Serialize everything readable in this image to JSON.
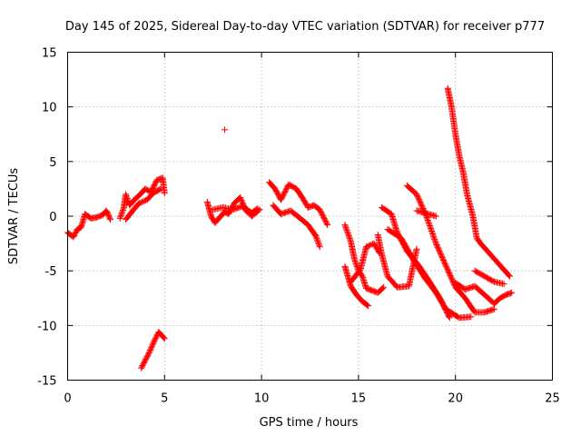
{
  "chart_data": {
    "type": "scatter",
    "title": "Day 145 of 2025, Sidereal Day-to-day VTEC variation (SDTVAR) for receiver p777",
    "xlabel": "GPS time / hours",
    "ylabel": "SDTVAR / TECUs",
    "xlim": [
      0,
      25
    ],
    "ylim": [
      -15,
      15
    ],
    "grid": true,
    "x_ticks": [
      0,
      5,
      10,
      15,
      20,
      25
    ],
    "y_ticks": [
      -15,
      -10,
      -5,
      0,
      5,
      10,
      15
    ],
    "marker_color": "#ff0000",
    "series": [
      {
        "name": "seg_a",
        "points": [
          [
            0.0,
            -1.5
          ],
          [
            0.3,
            -1.9
          ],
          [
            0.5,
            -1.2
          ],
          [
            0.7,
            -1.0
          ],
          [
            0.9,
            0.2
          ],
          [
            1.2,
            -0.2
          ],
          [
            1.5,
            -0.1
          ],
          [
            1.8,
            0.1
          ],
          [
            2.0,
            0.5
          ],
          [
            2.2,
            -0.3
          ]
        ]
      },
      {
        "name": "seg_b",
        "points": [
          [
            2.7,
            -0.2
          ],
          [
            2.9,
            0.8
          ],
          [
            3.0,
            2.0
          ],
          [
            3.2,
            1.0
          ],
          [
            3.5,
            1.6
          ],
          [
            3.8,
            2.1
          ],
          [
            4.0,
            2.5
          ],
          [
            4.3,
            2.2
          ],
          [
            4.6,
            3.3
          ],
          [
            4.9,
            3.5
          ],
          [
            5.0,
            2.1
          ]
        ]
      },
      {
        "name": "seg_c",
        "points": [
          [
            3.0,
            -0.3
          ],
          [
            3.4,
            0.6
          ],
          [
            3.7,
            1.2
          ],
          [
            4.1,
            1.5
          ],
          [
            4.4,
            2.1
          ],
          [
            4.8,
            2.5
          ]
        ]
      },
      {
        "name": "seg_d",
        "points": [
          [
            3.8,
            -13.9
          ],
          [
            4.0,
            -13.2
          ],
          [
            4.2,
            -12.5
          ],
          [
            4.5,
            -11.3
          ],
          [
            4.7,
            -10.6
          ],
          [
            5.0,
            -11.2
          ]
        ]
      },
      {
        "name": "seg_outlier",
        "points": [
          [
            8.1,
            7.9
          ]
        ]
      },
      {
        "name": "seg_e",
        "points": [
          [
            7.2,
            1.3
          ],
          [
            7.4,
            0.0
          ],
          [
            7.6,
            -0.6
          ],
          [
            7.9,
            0.0
          ],
          [
            8.1,
            0.4
          ],
          [
            8.3,
            0.2
          ],
          [
            8.6,
            1.2
          ],
          [
            8.9,
            1.7
          ],
          [
            9.2,
            0.5
          ],
          [
            9.5,
            0.0
          ],
          [
            9.9,
            0.6
          ]
        ]
      },
      {
        "name": "seg_f",
        "points": [
          [
            7.5,
            0.6
          ],
          [
            8.0,
            0.8
          ],
          [
            8.5,
            0.6
          ],
          [
            9.0,
            0.9
          ],
          [
            9.5,
            0.3
          ],
          [
            9.8,
            0.7
          ]
        ]
      },
      {
        "name": "seg_g",
        "points": [
          [
            10.4,
            3.1
          ],
          [
            10.7,
            2.5
          ],
          [
            11.0,
            1.5
          ],
          [
            11.4,
            2.9
          ],
          [
            11.8,
            2.5
          ],
          [
            12.1,
            1.7
          ],
          [
            12.4,
            0.8
          ],
          [
            12.7,
            1.0
          ],
          [
            13.0,
            0.6
          ],
          [
            13.4,
            -0.8
          ]
        ]
      },
      {
        "name": "seg_h",
        "points": [
          [
            10.6,
            1.0
          ],
          [
            11.0,
            0.2
          ],
          [
            11.5,
            0.5
          ],
          [
            12.0,
            -0.2
          ],
          [
            12.4,
            -0.8
          ],
          [
            12.8,
            -1.8
          ],
          [
            13.0,
            -2.8
          ]
        ]
      },
      {
        "name": "seg_i",
        "points": [
          [
            14.3,
            -0.8
          ],
          [
            14.6,
            -2.3
          ],
          [
            14.8,
            -4.0
          ],
          [
            15.0,
            -5.0
          ],
          [
            15.2,
            -5.5
          ],
          [
            15.4,
            -6.6
          ],
          [
            15.7,
            -6.8
          ],
          [
            16.0,
            -7.0
          ],
          [
            16.3,
            -6.5
          ]
        ]
      },
      {
        "name": "seg_j",
        "points": [
          [
            14.3,
            -4.6
          ],
          [
            14.6,
            -6.4
          ],
          [
            14.9,
            -7.2
          ],
          [
            15.2,
            -7.8
          ],
          [
            15.5,
            -8.2
          ]
        ]
      },
      {
        "name": "seg_k",
        "points": [
          [
            14.6,
            -6.0
          ],
          [
            15.1,
            -4.9
          ],
          [
            15.4,
            -2.8
          ],
          [
            15.8,
            -2.5
          ],
          [
            16.1,
            -3.4
          ]
        ]
      },
      {
        "name": "seg_l",
        "points": [
          [
            16.0,
            -1.7
          ],
          [
            16.2,
            -3.5
          ],
          [
            16.5,
            -5.5
          ],
          [
            17.0,
            -6.5
          ],
          [
            17.6,
            -6.4
          ],
          [
            18.0,
            -3.0
          ]
        ]
      },
      {
        "name": "seg_m",
        "points": [
          [
            16.2,
            0.8
          ],
          [
            16.7,
            0.2
          ],
          [
            17.0,
            -1.5
          ],
          [
            17.5,
            -3.2
          ],
          [
            18.1,
            -4.5
          ],
          [
            18.6,
            -5.8
          ],
          [
            19.2,
            -7.5
          ],
          [
            19.7,
            -9.3
          ]
        ]
      },
      {
        "name": "seg_n",
        "points": [
          [
            16.5,
            -1.2
          ],
          [
            17.2,
            -2.0
          ],
          [
            17.8,
            -3.9
          ],
          [
            18.4,
            -5.6
          ],
          [
            19.0,
            -7.0
          ],
          [
            19.5,
            -8.5
          ],
          [
            20.2,
            -9.3
          ],
          [
            20.8,
            -9.2
          ]
        ]
      },
      {
        "name": "seg_o",
        "points": [
          [
            17.5,
            2.8
          ],
          [
            18.0,
            2.0
          ],
          [
            18.5,
            0.0
          ],
          [
            19.0,
            -2.5
          ],
          [
            19.5,
            -4.5
          ],
          [
            20.0,
            -6.5
          ],
          [
            20.5,
            -7.5
          ],
          [
            21.0,
            -8.8
          ],
          [
            21.5,
            -8.8
          ],
          [
            22.0,
            -8.5
          ]
        ]
      },
      {
        "name": "seg_p",
        "points": [
          [
            18.0,
            0.5
          ],
          [
            18.6,
            0.2
          ],
          [
            19.0,
            0.0
          ]
        ]
      },
      {
        "name": "seg_q",
        "points": [
          [
            19.6,
            11.7
          ],
          [
            19.8,
            10.0
          ],
          [
            20.0,
            7.5
          ],
          [
            20.2,
            5.5
          ],
          [
            20.4,
            4.0
          ],
          [
            20.6,
            2.0
          ],
          [
            20.9,
            0.0
          ],
          [
            21.1,
            -2.0
          ],
          [
            21.3,
            -2.5
          ],
          [
            21.8,
            -3.5
          ],
          [
            22.3,
            -4.5
          ],
          [
            22.8,
            -5.5
          ]
        ]
      },
      {
        "name": "seg_r",
        "points": [
          [
            20.0,
            -6.1
          ],
          [
            20.5,
            -6.7
          ],
          [
            21.0,
            -6.4
          ],
          [
            21.5,
            -7.2
          ],
          [
            22.0,
            -8.0
          ],
          [
            22.3,
            -7.5
          ],
          [
            22.6,
            -7.2
          ],
          [
            22.9,
            -7.0
          ]
        ]
      },
      {
        "name": "seg_s",
        "points": [
          [
            21.0,
            -5.0
          ],
          [
            21.5,
            -5.5
          ],
          [
            22.0,
            -6.0
          ],
          [
            22.5,
            -6.2
          ]
        ]
      }
    ]
  }
}
